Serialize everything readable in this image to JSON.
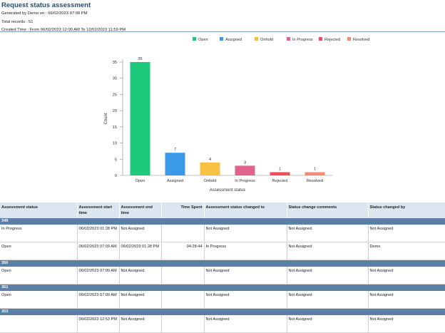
{
  "report": {
    "title": "Request status assessment",
    "generated_by": "Generated by Demo on : 06/02/2023 07:08 PM",
    "total_records": "Total records : 51",
    "created_time": "Created Time : From 06/02/2023 12:00 AM To 12/02/2023 11:59 PM"
  },
  "chart_data": {
    "type": "bar",
    "categories": [
      "Open",
      "Assigned",
      "Onhold",
      "In Progress",
      "Rejected",
      "Resolved"
    ],
    "values": [
      35,
      7,
      4,
      3,
      1,
      1
    ],
    "colors": [
      "#1ec87c",
      "#3b9ae8",
      "#f7c244",
      "#e0648c",
      "#f04c5c",
      "#f58a6e"
    ],
    "legend": [
      "Open",
      "Assigned",
      "Onhold",
      "In Progress",
      "Rejected",
      "Resolved"
    ],
    "legend_position": "top-right",
    "xlabel": "Assessment status",
    "ylabel": "Count",
    "ylim": [
      0,
      35
    ],
    "yticks": [
      0,
      5,
      10,
      15,
      20,
      25,
      30,
      35
    ],
    "grid": false
  },
  "table": {
    "columns": [
      "Assessment status",
      "Assessment start time",
      "Assessment end time",
      "Time Spent",
      "Assessment status changed to",
      "Status change comments",
      "Status changed by"
    ],
    "groups": [
      {
        "id": "349",
        "rows": [
          [
            "In Progress",
            "06/02/2023 01:28 PM",
            "Not Assigned",
            "",
            "Not Assigned",
            "Not Assigned",
            "Not Assigned"
          ],
          [
            "Open",
            "06/02/2023 07:09 AM",
            "06/02/2023 01:28 PM",
            "04:28:44",
            "In Progress",
            "Not Assigned",
            "Demo"
          ]
        ]
      },
      {
        "id": "350",
        "rows": [
          [
            "Open",
            "06/02/2023 07:09 AM",
            "Not Assigned",
            "",
            "Not Assigned",
            "Not Assigned",
            "Not Assigned"
          ]
        ]
      },
      {
        "id": "351",
        "rows": [
          [
            "Open",
            "06/02/2023 07:09 AM",
            "Not Assigned",
            "",
            "Not Assigned",
            "Not Assigned",
            "Not Assigned"
          ]
        ]
      },
      {
        "id": "353",
        "rows": [
          [
            "",
            "06/02/2023 12:53 PM",
            "Not Assigned",
            "",
            "Not Assigned",
            "Not Assigned",
            "Not Assigned"
          ]
        ]
      }
    ]
  }
}
